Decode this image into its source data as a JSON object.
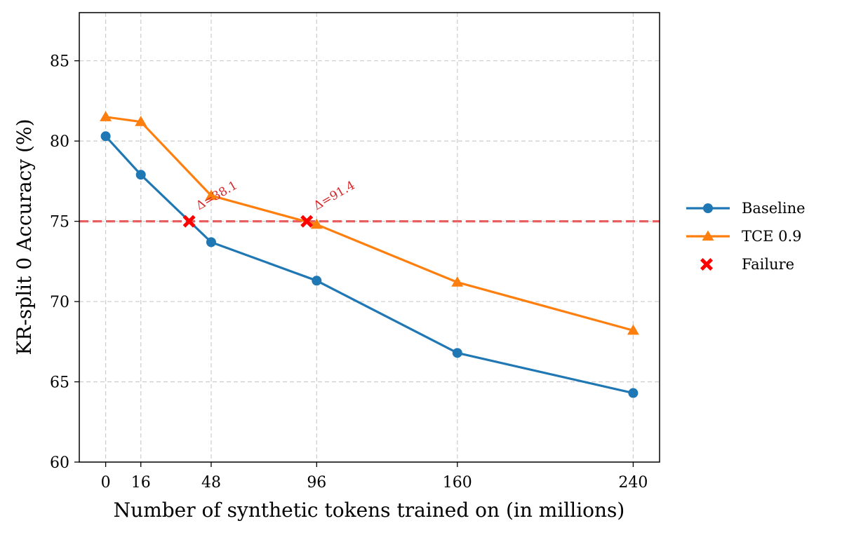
{
  "chart_data": {
    "type": "line",
    "title": "",
    "xlabel": "Number of synthetic tokens trained on (in millions)",
    "ylabel": "KR-split 0 Accuracy (%)",
    "xlim": [
      -12,
      252
    ],
    "ylim": [
      60,
      88
    ],
    "xticks": [
      0,
      16,
      48,
      96,
      160,
      240
    ],
    "yticks": [
      60,
      65,
      70,
      75,
      80,
      85
    ],
    "grid": true,
    "legend_position": "outside-right",
    "threshold": {
      "y": 75,
      "color": "#e8474a",
      "style": "dashed"
    },
    "series": [
      {
        "name": "Baseline",
        "color": "#1f77b4",
        "marker": "circle",
        "x": [
          0,
          16,
          48,
          96,
          160,
          240
        ],
        "y": [
          80.3,
          77.9,
          73.7,
          71.3,
          66.8,
          64.3
        ]
      },
      {
        "name": "TCE 0.9",
        "color": "#ff7f0e",
        "marker": "triangle",
        "x": [
          0,
          16,
          48,
          96,
          160,
          240
        ],
        "y": [
          81.5,
          81.2,
          76.6,
          74.8,
          71.2,
          68.2
        ]
      }
    ],
    "failures": {
      "name": "Failure",
      "color": "#ff0000",
      "marker": "x",
      "points": [
        {
          "x": 38,
          "y": 75,
          "label": "Δ=38.1"
        },
        {
          "x": 91.5,
          "y": 75,
          "label": "Δ=91.4"
        }
      ]
    }
  }
}
